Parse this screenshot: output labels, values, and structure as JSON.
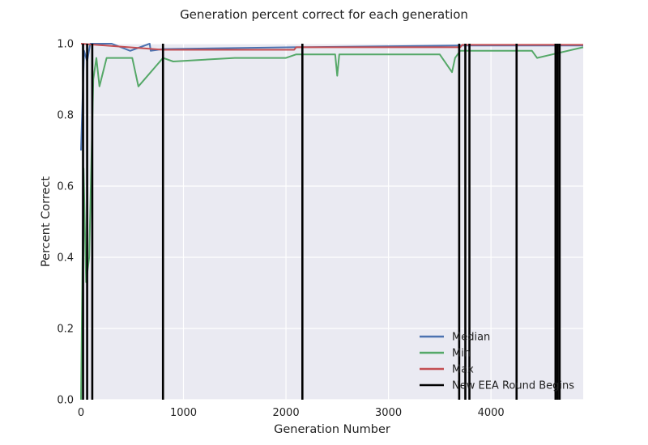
{
  "chart_data": {
    "type": "line",
    "title": "Generation percent correct for each generation",
    "xlabel": "Generation Number",
    "ylabel": "Percent Correct",
    "xlim": [
      0,
      4900
    ],
    "ylim": [
      0.0,
      1.0
    ],
    "x_ticks": [
      0,
      1000,
      2000,
      3000,
      4000
    ],
    "x_tick_labels": [
      "0",
      "1000",
      "2000",
      "3000",
      "4000"
    ],
    "y_ticks": [
      0.0,
      0.2,
      0.4,
      0.6,
      0.8,
      1.0
    ],
    "y_tick_labels": [
      "0.0",
      "0.2",
      "0.4",
      "0.6",
      "0.8",
      "1.0"
    ],
    "grid": true,
    "legend_position": "bottom-right",
    "colors": {
      "plot_background": "#eaeaf2",
      "grid": "#ffffff",
      "median": "#4c72b0",
      "min": "#55a868",
      "max": "#c44e52",
      "round": "#000000"
    },
    "series": [
      {
        "name": "Median",
        "key": "median",
        "x": [
          0,
          30,
          60,
          90,
          120,
          300,
          480,
          670,
          680,
          800,
          2080,
          3700,
          4900
        ],
        "values": [
          0.7,
          0.98,
          0.95,
          1.0,
          1.0,
          1.0,
          0.98,
          1.0,
          0.98,
          0.985,
          0.99,
          0.995,
          0.995
        ]
      },
      {
        "name": "Min",
        "key": "min",
        "x": [
          0,
          25,
          50,
          80,
          120,
          150,
          180,
          250,
          500,
          560,
          800,
          900,
          1500,
          2000,
          2100,
          2300,
          2480,
          2500,
          2520,
          3000,
          3500,
          3620,
          3650,
          3700,
          4000,
          4400,
          4450,
          4600,
          4900
        ],
        "values": [
          0.0,
          0.65,
          0.33,
          0.4,
          0.9,
          0.96,
          0.88,
          0.96,
          0.96,
          0.88,
          0.96,
          0.95,
          0.96,
          0.96,
          0.97,
          0.97,
          0.97,
          0.91,
          0.97,
          0.97,
          0.97,
          0.92,
          0.96,
          0.98,
          0.98,
          0.98,
          0.96,
          0.97,
          0.99
        ]
      },
      {
        "name": "Max",
        "key": "max",
        "x": [
          0,
          800,
          2080,
          2100,
          3700,
          3720,
          4900
        ],
        "values": [
          1.0,
          0.983,
          0.983,
          0.99,
          0.99,
          0.997,
          0.997
        ]
      }
    ],
    "round_boundaries": {
      "name": "New EEA Round Begins",
      "x": [
        20,
        60,
        110,
        800,
        2160,
        3690,
        3750,
        3790,
        4250,
        4630,
        4650,
        4670
      ]
    },
    "legend": [
      {
        "label": "Median",
        "key": "median"
      },
      {
        "label": "Min",
        "key": "min"
      },
      {
        "label": "Max",
        "key": "max"
      },
      {
        "label": "New EEA Round Begins",
        "key": "round"
      }
    ]
  }
}
